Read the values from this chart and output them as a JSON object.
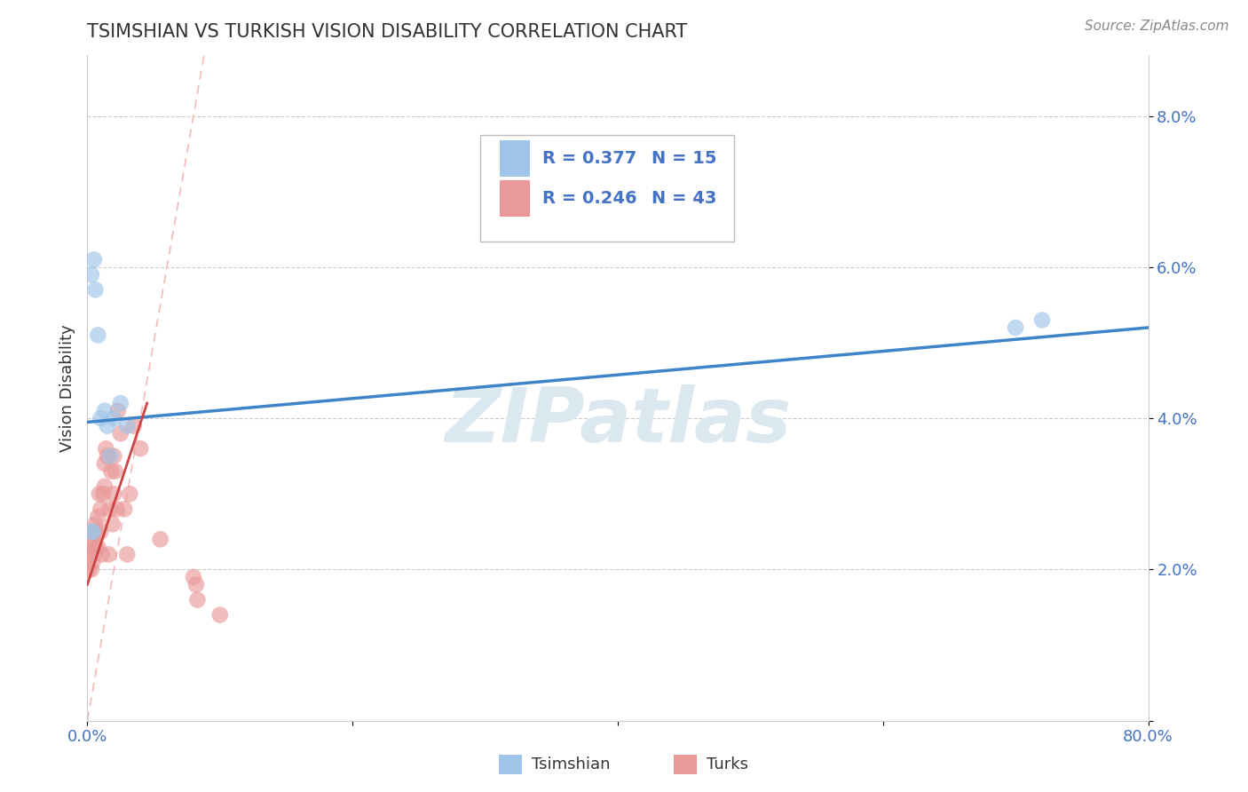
{
  "title": "TSIMSHIAN VS TURKISH VISION DISABILITY CORRELATION CHART",
  "source_text": "Source: ZipAtlas.com",
  "ylabel": "Vision Disability",
  "xlim": [
    0.0,
    0.8
  ],
  "ylim": [
    0.0,
    0.088
  ],
  "xtick_positions": [
    0.0,
    0.2,
    0.4,
    0.6,
    0.8
  ],
  "xticklabels": [
    "0.0%",
    "",
    "",
    "",
    "80.0%"
  ],
  "ytick_positions": [
    0.0,
    0.02,
    0.04,
    0.06,
    0.08
  ],
  "yticklabels": [
    "",
    "2.0%",
    "4.0%",
    "6.0%",
    "8.0%"
  ],
  "legend_R1": "R = 0.377",
  "legend_N1": "N = 15",
  "legend_R2": "R = 0.246",
  "legend_N2": "N = 43",
  "legend_label1": "Tsimshian",
  "legend_label2": "Turks",
  "color_blue": "#9fc5e8",
  "color_pink": "#ea9999",
  "color_blue_line": "#3d85c8",
  "color_pink_line": "#cc4444",
  "color_diag_line": "#f4b8b8",
  "watermark_text": "ZIPatlas",
  "watermark_color": "#dce8f0",
  "tsimshian_x": [
    0.003,
    0.005,
    0.006,
    0.008,
    0.01,
    0.013,
    0.015,
    0.017,
    0.02,
    0.025,
    0.03,
    0.003,
    0.004,
    0.7,
    0.72
  ],
  "tsimshian_y": [
    0.059,
    0.061,
    0.057,
    0.051,
    0.04,
    0.041,
    0.039,
    0.035,
    0.04,
    0.042,
    0.039,
    0.025,
    0.025,
    0.052,
    0.053
  ],
  "turks_x": [
    0.001,
    0.002,
    0.002,
    0.003,
    0.003,
    0.004,
    0.004,
    0.005,
    0.005,
    0.006,
    0.006,
    0.007,
    0.008,
    0.008,
    0.009,
    0.01,
    0.01,
    0.011,
    0.012,
    0.013,
    0.013,
    0.014,
    0.015,
    0.016,
    0.017,
    0.018,
    0.019,
    0.02,
    0.02,
    0.021,
    0.022,
    0.023,
    0.025,
    0.028,
    0.03,
    0.032,
    0.035,
    0.04,
    0.055,
    0.08,
    0.082,
    0.083,
    0.1
  ],
  "turks_y": [
    0.02,
    0.022,
    0.025,
    0.023,
    0.02,
    0.024,
    0.021,
    0.025,
    0.022,
    0.026,
    0.023,
    0.025,
    0.027,
    0.023,
    0.03,
    0.025,
    0.028,
    0.022,
    0.03,
    0.034,
    0.031,
    0.036,
    0.035,
    0.022,
    0.028,
    0.033,
    0.026,
    0.035,
    0.03,
    0.033,
    0.028,
    0.041,
    0.038,
    0.028,
    0.022,
    0.03,
    0.039,
    0.036,
    0.024,
    0.019,
    0.018,
    0.016,
    0.014
  ],
  "blue_line_x": [
    0.0,
    0.8
  ],
  "blue_line_y": [
    0.0395,
    0.052
  ],
  "pink_line_x": [
    0.0,
    0.045
  ],
  "pink_line_y": [
    0.018,
    0.042
  ],
  "diag_line_x": [
    0.0,
    0.088
  ],
  "diag_line_y": [
    0.0,
    0.088
  ]
}
